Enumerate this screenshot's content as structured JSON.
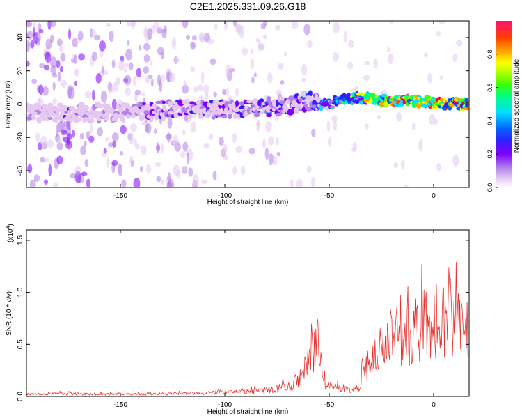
{
  "chart_data": [
    {
      "type": "heatmap",
      "title": "C2E1.2025.331.09.26.G18",
      "xlabel": "Height of straight line (km)",
      "ylabel": "Frequency (Hz)",
      "xlim": [
        -195,
        17
      ],
      "ylim": [
        -50,
        50
      ],
      "xticks": [
        -150,
        -100,
        -50,
        0
      ],
      "yticks": [
        -40,
        -20,
        0,
        20,
        40
      ],
      "colorbar": {
        "label": "Normalized spectral amplitude",
        "range": [
          0,
          1
        ],
        "ticks": [
          "0.0",
          "0.2",
          "0.4",
          "0.6",
          "0.8"
        ],
        "colors": [
          "#ffffff",
          "#e4c8f0",
          "#b080e8",
          "#8000ff",
          "#3020ff",
          "#0060ff",
          "#00e0ff",
          "#00ff80",
          "#40ff00",
          "#c0ff00",
          "#ffff00",
          "#ffa000",
          "#ff4000",
          "#ff0040",
          "#ff1070"
        ]
      },
      "ridge": {
        "height_km": [
          -190,
          -170,
          -150,
          -140,
          -120,
          -100,
          -80,
          -70,
          -60,
          -55,
          -50,
          -45,
          -40,
          -35,
          -30,
          -20,
          -10,
          0,
          10,
          17
        ],
        "frequency_hz": [
          -5,
          -5,
          -5,
          -4,
          -3,
          -3,
          -2,
          -1,
          2,
          0,
          0,
          2,
          3,
          4,
          3,
          2,
          2,
          1,
          0,
          0
        ],
        "amplitude": [
          0.15,
          0.2,
          0.15,
          0.22,
          0.3,
          0.3,
          0.35,
          0.3,
          0.35,
          0.4,
          0.5,
          0.55,
          0.65,
          0.7,
          0.85,
          0.95,
          0.95,
          0.95,
          0.9,
          0.85
        ]
      }
    },
    {
      "type": "line",
      "xlabel": "Height of straight line (km)",
      "ylabel": "SNR (10 * v/v)",
      "scale_label": "(x10",
      "scale_exponent": "4",
      "xlim": [
        -195,
        17
      ],
      "ylim": [
        0,
        1.6
      ],
      "xticks": [
        -150,
        -100,
        -50,
        0
      ],
      "yticks": [
        "0.0",
        "0.5",
        "1.0",
        "1.5"
      ],
      "color": "#e8302e",
      "envelope": {
        "x": [
          -195,
          -180,
          -160,
          -140,
          -120,
          -100,
          -85,
          -75,
          -68,
          -62,
          -58,
          -56,
          -54,
          -52,
          -48,
          -45,
          -40,
          -36,
          -34,
          -30,
          -25,
          -20,
          -15,
          -10,
          -5,
          -2,
          0,
          2,
          5,
          7,
          10,
          13,
          17
        ],
        "y": [
          0.03,
          0.04,
          0.03,
          0.03,
          0.04,
          0.05,
          0.07,
          0.1,
          0.15,
          0.3,
          0.55,
          0.75,
          0.5,
          0.2,
          0.12,
          0.1,
          0.08,
          0.1,
          0.35,
          0.45,
          0.6,
          0.75,
          0.7,
          0.85,
          0.95,
          0.9,
          1.0,
          1.05,
          0.95,
          1.15,
          0.95,
          1.0,
          1.0
        ]
      }
    }
  ]
}
